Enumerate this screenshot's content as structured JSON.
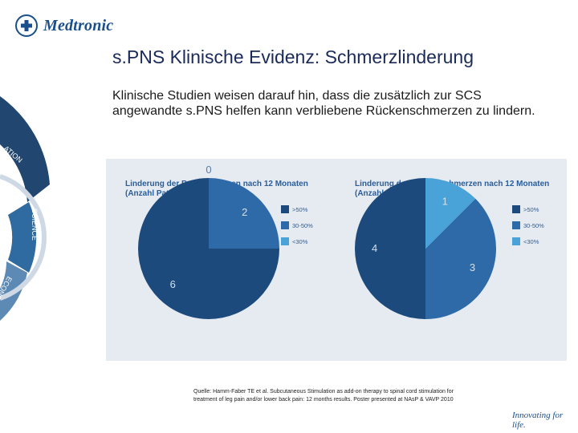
{
  "brand": {
    "name": "Medtronic",
    "tagline": "Innovating for life."
  },
  "slide": {
    "title": "s.PNS Klinische Evidenz: Schmerzlinderung",
    "intro": "Klinische Studien weisen darauf hin, dass die zusätzlich zur SCS angewandte s.PNS helfen kann verbliebene Rückenschmerzen zu lindern.",
    "footnote": "Quelle: Hamm-Faber TE et al. Subcutaneous Stimulation as add-on therapy to spinal cord stimulation for treatment of leg pain and/or lower back pain: 12 months results. Poster presented at NAsP & VAVP 2010"
  },
  "wheel": {
    "labels": [
      "ATION",
      "SCIENCE",
      "ECONO"
    ],
    "colors": [
      "#21466f",
      "#2f6aa0",
      "#5d89b5"
    ]
  },
  "colors": {
    "dark": "#1c4a7c",
    "medium": "#2f6aa8",
    "light": "#4aa3d8",
    "panel": "#e6ebf1"
  },
  "chart_data": [
    {
      "type": "pie",
      "title": "Linderung der Beinschmerzen nach 12 Monaten",
      "subtitle": "(Anzahl Patienten)",
      "categories": [
        ">50%",
        "30-50%",
        "<30%"
      ],
      "values": [
        6,
        2,
        0
      ],
      "legend": "right"
    },
    {
      "type": "pie",
      "title": "Linderung der Rückenschmerzen nach 12 Monaten",
      "subtitle": "(Anzahl Patienten)",
      "categories": [
        ">50%",
        "30-50%",
        "<30%"
      ],
      "values": [
        4,
        3,
        1
      ],
      "legend": "right"
    }
  ]
}
